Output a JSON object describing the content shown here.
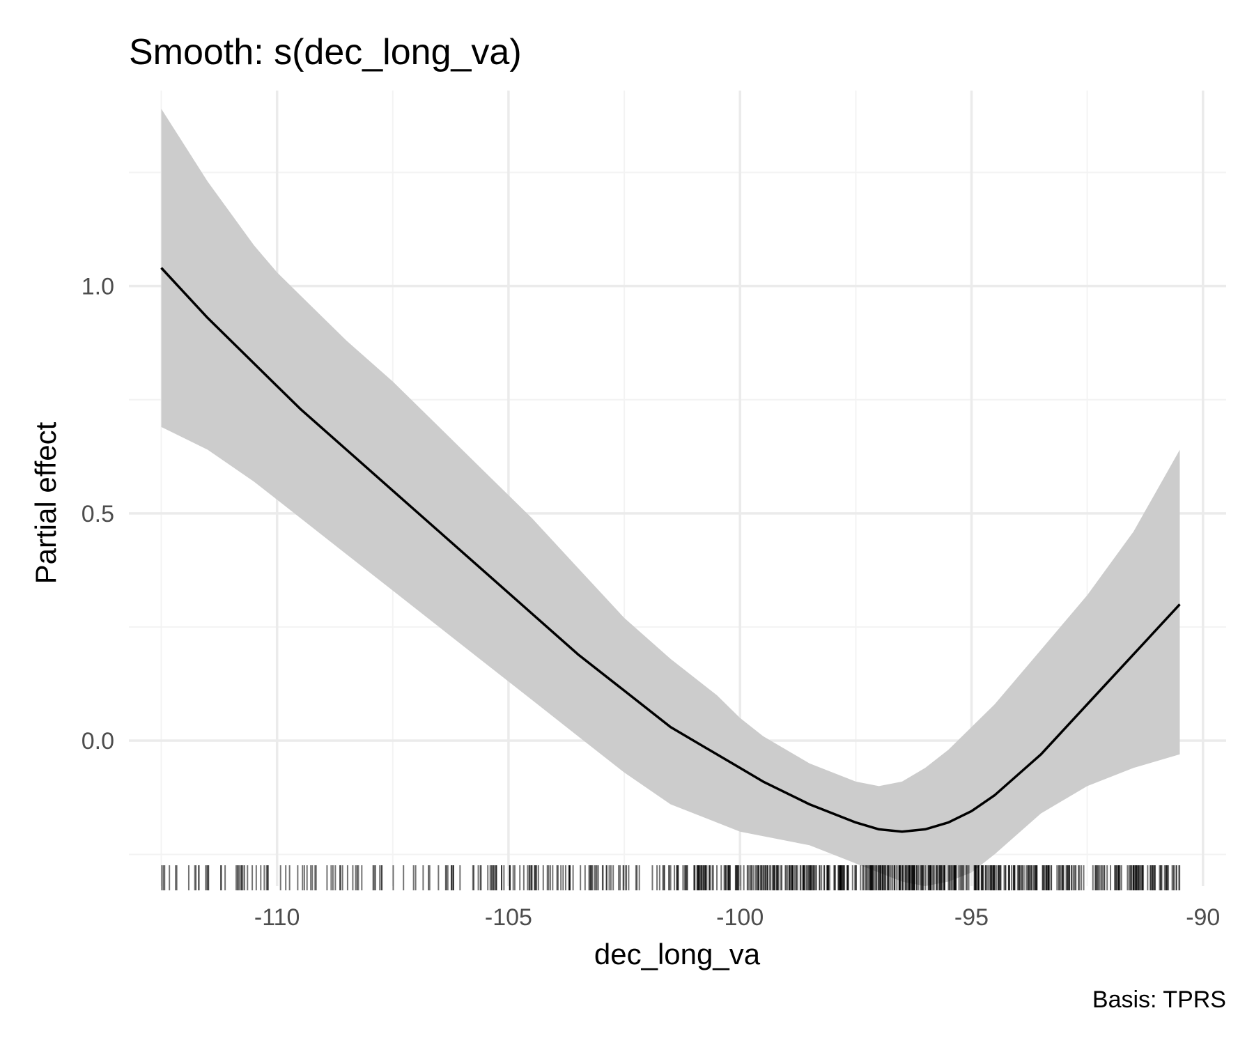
{
  "chart_data": {
    "type": "line",
    "title": "Smooth: s(dec_long_va)",
    "xlabel": "dec_long_va",
    "ylabel": "Partial effect",
    "caption": "Basis: TPRS",
    "xlim": [
      -113.2,
      -89.5
    ],
    "ylim": [
      -0.32,
      1.43
    ],
    "x_ticks": [
      -110,
      -105,
      -100,
      -95,
      -90
    ],
    "x_tick_labels": [
      "-110",
      "-105",
      "-100",
      "-95",
      "-90"
    ],
    "y_ticks": [
      0.0,
      0.5,
      1.0
    ],
    "y_tick_labels": [
      "0.0",
      "0.5",
      "1.0"
    ],
    "grid": true,
    "legend": "none",
    "colors": {
      "line": "#000000",
      "ribbon": "#cccccc",
      "rug": "#000000",
      "grid": "#ebebeb"
    },
    "series": [
      {
        "x": [
          -112.5,
          -111.5,
          -110.5,
          -110.0,
          -109.5,
          -108.5,
          -107.5,
          -106.5,
          -105.5,
          -105.0,
          -104.5,
          -103.5,
          -102.5,
          -101.5,
          -100.5,
          -100.0,
          -99.5,
          -98.5,
          -97.5,
          -97.0,
          -96.5,
          -96.0,
          -95.5,
          -95.0,
          -94.5,
          -93.5,
          -92.5,
          -91.5,
          -90.5
        ],
        "y": [
          1.04,
          0.93,
          0.83,
          0.78,
          0.73,
          0.64,
          0.55,
          0.46,
          0.37,
          0.325,
          0.28,
          0.19,
          0.11,
          0.03,
          -0.03,
          -0.06,
          -0.09,
          -0.14,
          -0.18,
          -0.195,
          -0.2,
          -0.195,
          -0.18,
          -0.155,
          -0.12,
          -0.03,
          0.08,
          0.19,
          0.3
        ],
        "lower": [
          0.69,
          0.64,
          0.57,
          0.53,
          0.49,
          0.41,
          0.33,
          0.25,
          0.17,
          0.13,
          0.09,
          0.01,
          -0.07,
          -0.14,
          -0.18,
          -0.2,
          -0.21,
          -0.23,
          -0.27,
          -0.29,
          -0.31,
          -0.32,
          -0.31,
          -0.29,
          -0.25,
          -0.16,
          -0.1,
          -0.06,
          -0.03
        ],
        "upper": [
          1.39,
          1.23,
          1.09,
          1.03,
          0.98,
          0.88,
          0.79,
          0.69,
          0.59,
          0.54,
          0.49,
          0.38,
          0.27,
          0.18,
          0.1,
          0.05,
          0.01,
          -0.05,
          -0.09,
          -0.1,
          -0.09,
          -0.06,
          -0.02,
          0.03,
          0.08,
          0.2,
          0.32,
          0.46,
          0.64
        ]
      }
    ]
  }
}
